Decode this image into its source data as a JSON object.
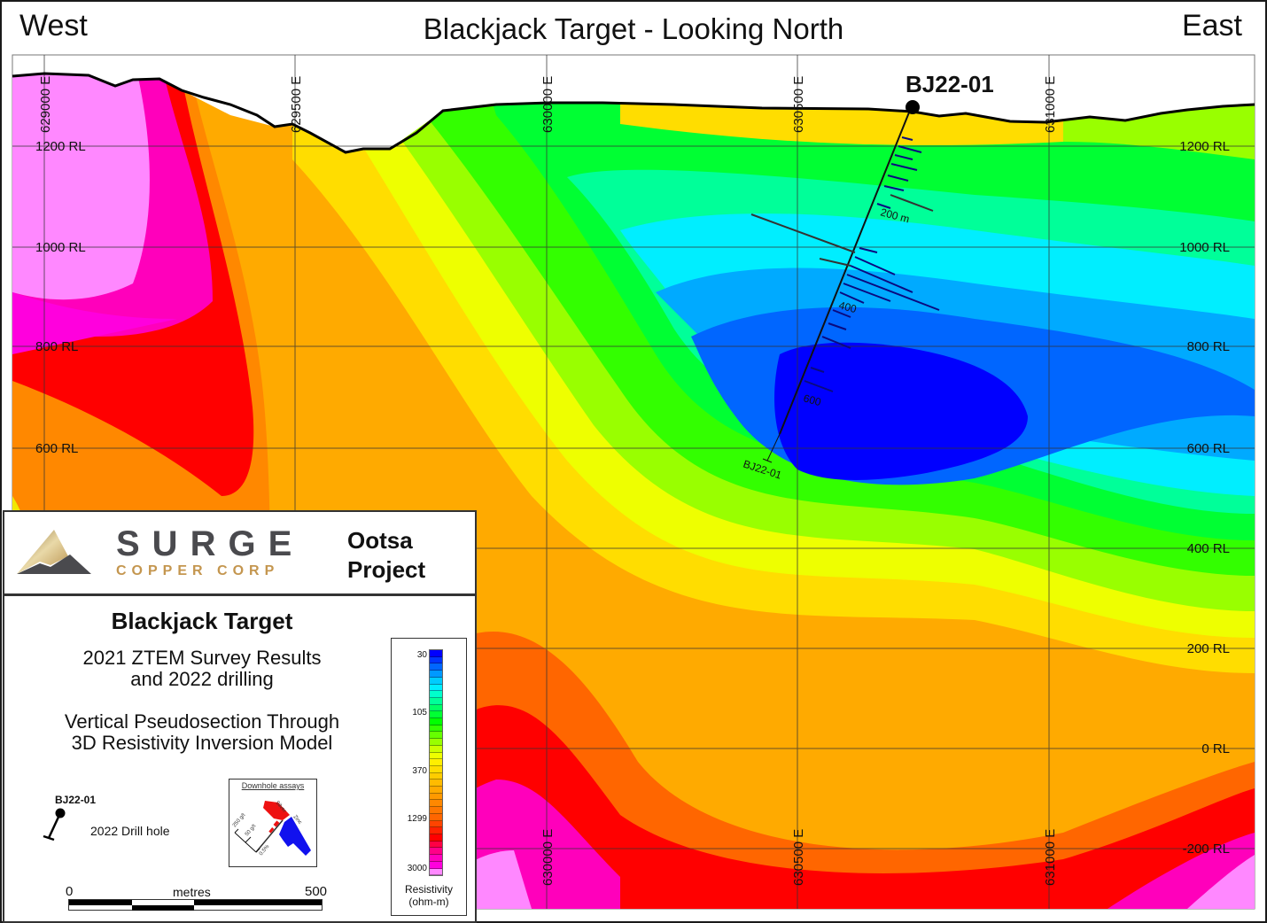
{
  "header": {
    "west_label": "West",
    "east_label": "East",
    "title": "Blackjack Target - Looking North"
  },
  "axes": {
    "easting_top": [
      "629000 E",
      "629500 E",
      "630000 E",
      "630500 E",
      "631000 E"
    ],
    "easting_bottom": [
      "630000 E",
      "630500 E",
      "631000 E"
    ],
    "elevation_left": [
      "1200 RL",
      "1000 RL",
      "800 RL",
      "600 RL"
    ],
    "elevation_right": [
      "1200 RL",
      "1000 RL",
      "800 RL",
      "600 RL",
      "400 RL",
      "200 RL",
      "0 RL",
      "-200 RL"
    ]
  },
  "drillhole": {
    "collar_label": "BJ22-01",
    "trace_label": "BJ22-01",
    "depth_labels": [
      "200 m",
      "400",
      "600"
    ]
  },
  "legend": {
    "company_name": "SURGE",
    "company_sub": "COPPER CORP",
    "project_line1": "Ootsa",
    "project_line2": "Project",
    "target_title": "Blackjack Target",
    "subtitle_line1": "2021 ZTEM Survey Results",
    "subtitle_line2": "and 2022 drilling",
    "desc_line1": "Vertical Pseudosection Through",
    "desc_line2": "3D Resistivity Inversion Model",
    "drill_symbol_label": "BJ22-01",
    "drill_symbol_desc": "2022 Drill hole",
    "downhole_title": "Downhole assays",
    "downhole_silver": "Silver",
    "downhole_zinc": "Zinc",
    "downhole_scale": [
      "250 g/t",
      "50 g/t",
      "0.5%"
    ],
    "scale_start": "0",
    "scale_unit": "metres",
    "scale_end": "500"
  },
  "colorbar": {
    "labels": [
      "30",
      "105",
      "370",
      "1299",
      "3000"
    ],
    "title_line1": "Resistivity",
    "title_line2": "(ohm-m)",
    "colors": [
      "#0000ff",
      "#0033ff",
      "#0066ff",
      "#0099ff",
      "#00ccff",
      "#00eeff",
      "#00ffcc",
      "#00ff99",
      "#00ff66",
      "#00ff33",
      "#00ff00",
      "#33ff00",
      "#66ff00",
      "#99ff00",
      "#ccff00",
      "#eeff00",
      "#ffee00",
      "#ffdd00",
      "#ffcc00",
      "#ffbb00",
      "#ffaa00",
      "#ff9900",
      "#ff8800",
      "#ff7700",
      "#ff6600",
      "#ff4400",
      "#ff2200",
      "#ff0000",
      "#ff0044",
      "#ff0088",
      "#ff00bb",
      "#ff00dd",
      "#ff88ff"
    ]
  },
  "colors": {
    "company_gray": "#4a4a4e",
    "company_gold": "#c4964f",
    "silver_assay": "#ee1111",
    "zinc_assay": "#1111ee"
  }
}
